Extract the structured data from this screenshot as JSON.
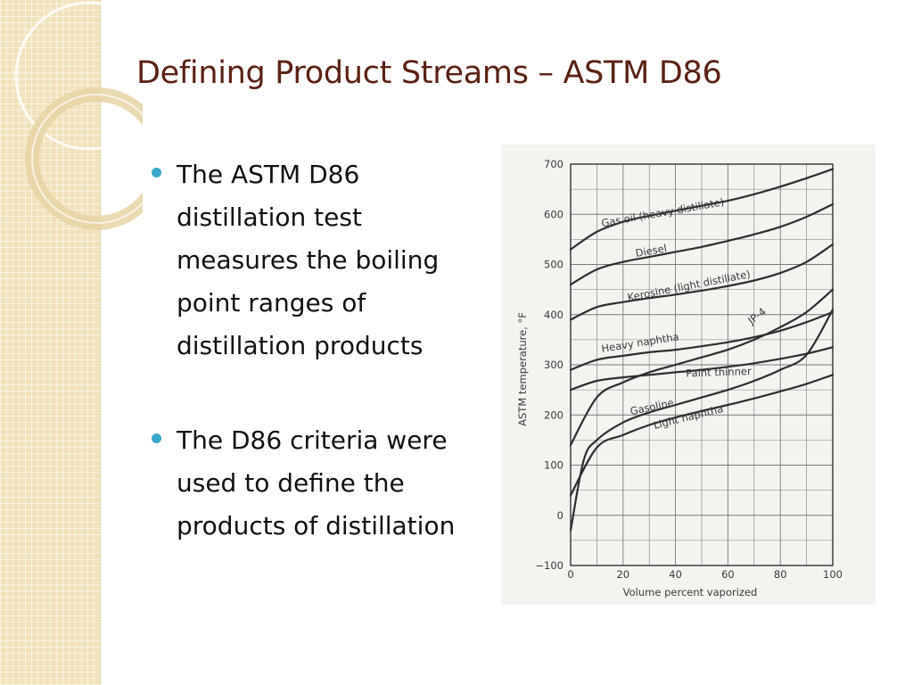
{
  "slide": {
    "title": "Defining Product Streams – ASTM D86",
    "bullets": [
      {
        "text": "The ASTM D86 distillation test measures the boiling point ranges of distillation products"
      },
      {
        "text": "The D86 criteria were used to define the products of distillation"
      }
    ]
  },
  "colors": {
    "title": "#5a2214",
    "bullet": "#39a9c9",
    "sidebar": "#f1e2bb",
    "ink": "#3a3a3a"
  },
  "chart_data": {
    "type": "line",
    "title": "",
    "xlabel": "Volume percent vaporized",
    "ylabel": "ASTM temperature, °F",
    "xlim": [
      0,
      100
    ],
    "ylim": [
      -100,
      700
    ],
    "xticks": [
      0,
      20,
      40,
      60,
      80,
      100
    ],
    "yticks": [
      -100,
      0,
      100,
      200,
      300,
      400,
      500,
      600,
      700
    ],
    "grid": true,
    "legend": "none",
    "series": [
      {
        "name": "Gas oil (heavy distillate)",
        "x": [
          0,
          10,
          20,
          30,
          40,
          50,
          60,
          70,
          80,
          90,
          100
        ],
        "y": [
          530,
          565,
          585,
          597,
          607,
          617,
          627,
          640,
          655,
          672,
          690
        ]
      },
      {
        "name": "Diesel",
        "x": [
          0,
          10,
          20,
          30,
          40,
          50,
          60,
          70,
          80,
          90,
          100
        ],
        "y": [
          460,
          490,
          505,
          515,
          525,
          535,
          547,
          560,
          575,
          595,
          620
        ]
      },
      {
        "name": "Kerosine (light distillate)",
        "x": [
          0,
          10,
          20,
          30,
          40,
          50,
          60,
          70,
          80,
          90,
          100
        ],
        "y": [
          390,
          415,
          425,
          433,
          440,
          448,
          457,
          468,
          483,
          505,
          540
        ]
      },
      {
        "name": "JP-4",
        "x": [
          0,
          10,
          20,
          30,
          40,
          50,
          60,
          70,
          80,
          90,
          100
        ],
        "y": [
          140,
          235,
          265,
          285,
          300,
          315,
          330,
          350,
          375,
          405,
          450
        ]
      },
      {
        "name": "Heavy naphtha",
        "x": [
          0,
          10,
          20,
          30,
          40,
          50,
          60,
          70,
          80,
          90,
          100
        ],
        "y": [
          290,
          310,
          318,
          325,
          330,
          337,
          345,
          355,
          368,
          385,
          405
        ]
      },
      {
        "name": "Paint thinner",
        "x": [
          0,
          10,
          20,
          30,
          40,
          50,
          60,
          70,
          80,
          90,
          100
        ],
        "y": [
          250,
          268,
          275,
          280,
          285,
          290,
          296,
          303,
          312,
          322,
          335
        ]
      },
      {
        "name": "Gasoline",
        "x": [
          0,
          5,
          10,
          20,
          30,
          40,
          50,
          60,
          70,
          80,
          90,
          100
        ],
        "y": [
          -30,
          110,
          150,
          185,
          205,
          220,
          235,
          250,
          268,
          290,
          320,
          410
        ]
      },
      {
        "name": "Light naphtha",
        "x": [
          0,
          10,
          20,
          30,
          40,
          50,
          60,
          70,
          80,
          90,
          100
        ],
        "y": [
          40,
          135,
          160,
          180,
          195,
          208,
          220,
          233,
          247,
          262,
          280
        ]
      }
    ]
  }
}
